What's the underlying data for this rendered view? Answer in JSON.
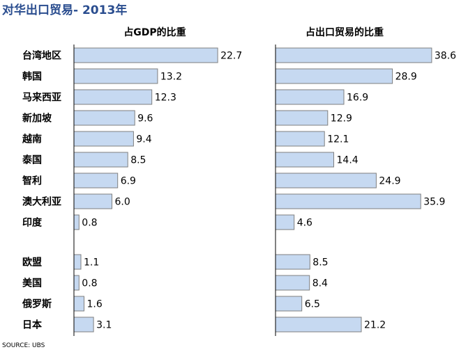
{
  "title": "对华出口贸易- 2013年",
  "source": "SOURCE: UBS",
  "colors": {
    "title": "#2a4d8f",
    "bar_fill": "#c6d9f1",
    "bar_stroke": "#7f7f7f",
    "axis": "#000000"
  },
  "chart_data": [
    {
      "type": "bar",
      "orientation": "horizontal",
      "title": "占GDP的比重",
      "categories": [
        "台湾地区",
        "韩国",
        "马来西亚",
        "新加坡",
        "越南",
        "泰国",
        "智利",
        "澳大利亚",
        "印度",
        "欧盟",
        "美国",
        "俄罗斯",
        "日本"
      ],
      "values": [
        22.7,
        13.2,
        12.3,
        9.6,
        9.4,
        8.5,
        6.9,
        6.0,
        0.8,
        1.1,
        0.8,
        1.6,
        3.1
      ],
      "labels": [
        "22.7",
        "13.2",
        "12.3",
        "9.6",
        "9.4",
        "8.5",
        "6.9",
        "6.0",
        "0.8",
        "1.1",
        "0.8",
        "1.6",
        "3.1"
      ],
      "xlim": [
        0,
        25
      ],
      "grid": false
    },
    {
      "type": "bar",
      "orientation": "horizontal",
      "title": "占出口贸易的比重",
      "categories": [
        "台湾地区",
        "韩国",
        "马来西亚",
        "新加坡",
        "越南",
        "泰国",
        "智利",
        "澳大利亚",
        "印度",
        "欧盟",
        "美国",
        "俄罗斯",
        "日本"
      ],
      "values": [
        38.6,
        28.9,
        16.9,
        12.9,
        12.1,
        14.4,
        24.9,
        35.9,
        4.6,
        8.5,
        8.4,
        6.5,
        21.2
      ],
      "labels": [
        "38.6",
        "28.9",
        "16.9",
        "12.9",
        "12.1",
        "14.4",
        "24.9",
        "35.9",
        "4.6",
        "8.5",
        "8.4",
        "6.5",
        "21.2"
      ],
      "xlim": [
        0,
        40
      ],
      "grid": false
    }
  ]
}
